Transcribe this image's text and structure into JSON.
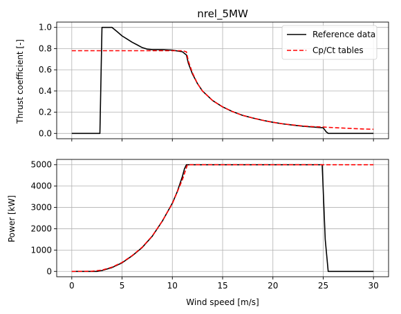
{
  "chart_data": [
    {
      "type": "line",
      "title": "nrel_5MW",
      "xlabel": "",
      "ylabel": "Thrust coefficient [-]",
      "xlim": [
        -1.5,
        31.5
      ],
      "ylim": [
        -0.05,
        1.05
      ],
      "xticks": [
        0,
        5,
        10,
        15,
        20,
        25,
        30
      ],
      "xtick_labels": [
        "",
        "",
        "",
        "",
        "",
        "",
        ""
      ],
      "yticks": [
        0.0,
        0.2,
        0.4,
        0.6,
        0.8,
        1.0
      ],
      "ytick_labels": [
        "0.0",
        "0.2",
        "0.4",
        "0.6",
        "0.8",
        "1.0"
      ],
      "grid": true,
      "legend": "top-right",
      "series": [
        {
          "name": "Reference data",
          "color": "#000000",
          "style": "solid",
          "x": [
            0,
            2.8,
            3.0,
            3.5,
            4.0,
            4.5,
            5.0,
            5.5,
            6.0,
            6.5,
            7.0,
            7.5,
            8.0,
            9.0,
            10.0,
            11.0,
            11.4,
            11.6,
            12.0,
            12.5,
            13.0,
            14.0,
            15.0,
            16.0,
            17.0,
            18.0,
            19.0,
            20.0,
            21.0,
            22.0,
            23.0,
            24.0,
            25.0,
            25.3,
            25.5,
            26.0,
            27.0,
            28.0,
            29.0,
            30.0
          ],
          "y": [
            0.0,
            0.0,
            1.0,
            1.0,
            1.0,
            0.96,
            0.92,
            0.89,
            0.86,
            0.835,
            0.81,
            0.795,
            0.79,
            0.79,
            0.785,
            0.77,
            0.74,
            0.66,
            0.56,
            0.47,
            0.4,
            0.31,
            0.25,
            0.205,
            0.17,
            0.145,
            0.123,
            0.105,
            0.09,
            0.078,
            0.068,
            0.06,
            0.053,
            0.015,
            0.0,
            0.0,
            0.0,
            0.0,
            0.0,
            0.0
          ]
        },
        {
          "name": "Cp/Ct tables",
          "color": "#ff0000",
          "style": "dashed",
          "x": [
            0,
            2.0,
            4.0,
            6.0,
            8.0,
            10.0,
            11.0,
            11.4,
            11.6,
            12.0,
            12.5,
            13.0,
            14.0,
            15.0,
            16.0,
            17.0,
            18.0,
            19.0,
            20.0,
            21.0,
            22.0,
            23.0,
            24.0,
            25.0,
            26.0,
            27.0,
            28.0,
            29.0,
            30.0
          ],
          "y": [
            0.78,
            0.78,
            0.78,
            0.78,
            0.78,
            0.78,
            0.78,
            0.77,
            0.68,
            0.57,
            0.47,
            0.4,
            0.31,
            0.25,
            0.205,
            0.17,
            0.145,
            0.123,
            0.105,
            0.09,
            0.08,
            0.07,
            0.064,
            0.06,
            0.055,
            0.05,
            0.046,
            0.042,
            0.039
          ]
        }
      ]
    },
    {
      "type": "line",
      "title": "",
      "xlabel": "Wind speed [m/s]",
      "ylabel": "Power [kW]",
      "xlim": [
        -1.5,
        31.5
      ],
      "ylim": [
        -250,
        5250
      ],
      "xticks": [
        0,
        5,
        10,
        15,
        20,
        25,
        30
      ],
      "xtick_labels": [
        "0",
        "5",
        "10",
        "15",
        "20",
        "25",
        "30"
      ],
      "yticks": [
        0,
        1000,
        2000,
        3000,
        4000,
        5000
      ],
      "ytick_labels": [
        "0",
        "1000",
        "2000",
        "3000",
        "4000",
        "5000"
      ],
      "grid": true,
      "legend": "",
      "series": [
        {
          "name": "Reference data",
          "color": "#000000",
          "style": "solid",
          "x": [
            0,
            2.5,
            3.0,
            4.0,
            5.0,
            6.0,
            7.0,
            8.0,
            9.0,
            10.0,
            10.5,
            11.0,
            11.2,
            11.4,
            12.0,
            14.0,
            16.0,
            18.0,
            20.0,
            22.0,
            24.0,
            24.9,
            25.2,
            25.5,
            26.0,
            28.0,
            30.0
          ],
          "y": [
            0,
            0,
            40,
            180,
            400,
            730,
            1120,
            1650,
            2350,
            3200,
            3750,
            4450,
            4800,
            5000,
            5000,
            5000,
            5000,
            5000,
            5000,
            5000,
            5000,
            5000,
            1500,
            0,
            0,
            0,
            0
          ]
        },
        {
          "name": "Cp/Ct tables",
          "color": "#ff0000",
          "style": "dashed",
          "x": [
            0,
            2.0,
            3.0,
            4.0,
            5.0,
            6.0,
            7.0,
            8.0,
            9.0,
            10.0,
            11.0,
            11.5,
            12.0,
            14.0,
            16.0,
            18.0,
            20.0,
            22.0,
            24.0,
            26.0,
            28.0,
            30.0
          ],
          "y": [
            0,
            10,
            60,
            200,
            420,
            740,
            1130,
            1660,
            2360,
            3180,
            4300,
            5000,
            5000,
            5000,
            5000,
            5000,
            5000,
            5000,
            5000,
            5000,
            5000,
            5000
          ]
        }
      ]
    }
  ]
}
